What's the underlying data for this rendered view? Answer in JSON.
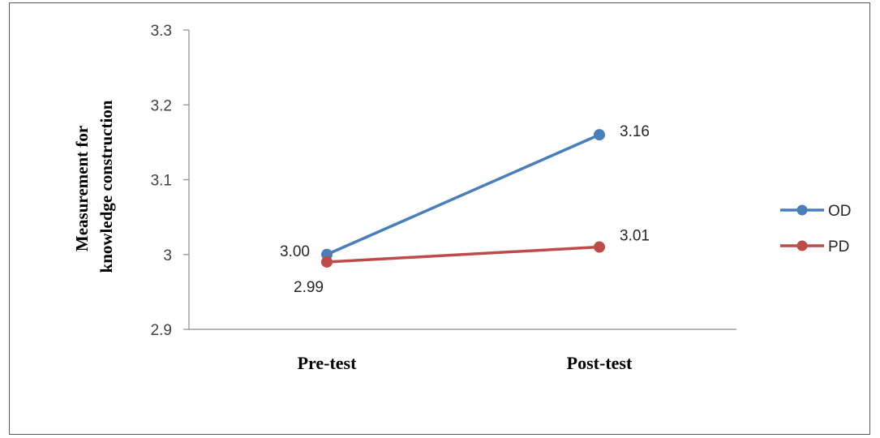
{
  "chart_data": {
    "type": "line",
    "categories": [
      "Pre-test",
      "Post-test"
    ],
    "series": [
      {
        "name": "OD",
        "values": [
          3.0,
          3.16
        ],
        "labels": [
          "3.00",
          "3.16"
        ],
        "color": "#4a7ebb"
      },
      {
        "name": "PD",
        "values": [
          2.99,
          3.01
        ],
        "labels": [
          "2.99",
          "3.01"
        ],
        "color": "#be4b48"
      }
    ],
    "ylabel_lines": [
      "Measurement for",
      "knowledge construction"
    ],
    "xlabel": "",
    "title": "",
    "ylim": [
      2.9,
      3.3
    ],
    "yticks": [
      "2.9",
      "3",
      "3.1",
      "3.2",
      "3.3"
    ],
    "ytick_values": [
      2.9,
      3.0,
      3.1,
      3.2,
      3.3
    ],
    "grid": false,
    "legend_position": "right"
  }
}
